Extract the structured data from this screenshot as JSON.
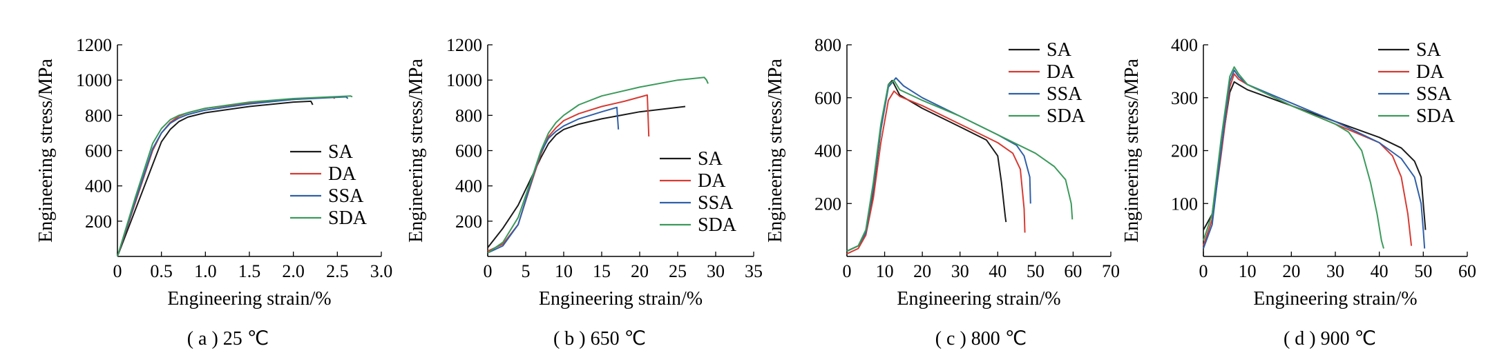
{
  "chart_data": [
    {
      "type": "line",
      "caption": "( a ) 25 ℃",
      "xlabel": "Engineering strain/%",
      "ylabel": "Engineering stress/MPa",
      "xlim": [
        0,
        3.0
      ],
      "ylim": [
        0,
        1200
      ],
      "xticks": [
        "0",
        "0.5",
        "1.0",
        "1.5",
        "2.0",
        "2.5",
        "3.0"
      ],
      "yticks": [
        "200",
        "400",
        "600",
        "800",
        "1000",
        "1200"
      ],
      "legend_position": "lower-right",
      "series": [
        {
          "name": "SA",
          "color": "#1a1a1a",
          "x": [
            0,
            0.2,
            0.4,
            0.5,
            0.6,
            0.7,
            0.8,
            1.0,
            1.5,
            2.0,
            2.2,
            2.22
          ],
          "y": [
            0,
            260,
            520,
            650,
            720,
            765,
            790,
            815,
            850,
            875,
            880,
            860
          ]
        },
        {
          "name": "DA",
          "color": "#d63a32",
          "x": [
            0,
            0.2,
            0.4,
            0.5,
            0.6,
            0.7,
            0.8,
            1.0,
            1.5,
            2.0,
            2.45,
            2.47
          ],
          "y": [
            0,
            300,
            600,
            700,
            760,
            795,
            815,
            840,
            870,
            890,
            905,
            895
          ]
        },
        {
          "name": "SSA",
          "color": "#2f5fa8",
          "x": [
            0,
            0.2,
            0.4,
            0.5,
            0.6,
            0.7,
            0.8,
            1.0,
            1.5,
            2.0,
            2.6,
            2.62
          ],
          "y": [
            0,
            310,
            610,
            700,
            755,
            785,
            805,
            830,
            865,
            890,
            905,
            895
          ]
        },
        {
          "name": "SDA",
          "color": "#3a9a5a",
          "x": [
            0,
            0.2,
            0.4,
            0.5,
            0.6,
            0.7,
            0.8,
            1.0,
            1.5,
            2.0,
            2.65,
            2.67
          ],
          "y": [
            0,
            330,
            640,
            725,
            775,
            800,
            815,
            840,
            875,
            895,
            910,
            905
          ]
        }
      ]
    },
    {
      "type": "line",
      "caption": "( b ) 650 ℃",
      "xlabel": "Engineering strain/%",
      "ylabel": "Engineering stress/MPa",
      "xlim": [
        0,
        35
      ],
      "ylim": [
        0,
        1200
      ],
      "xticks": [
        "0",
        "5",
        "10",
        "15",
        "20",
        "25",
        "30",
        "35"
      ],
      "yticks": [
        "200",
        "400",
        "600",
        "800",
        "1000",
        "1200"
      ],
      "legend_position": "lower-right",
      "series": [
        {
          "name": "SA",
          "color": "#1a1a1a",
          "x": [
            0,
            2,
            4,
            6,
            7,
            8,
            9,
            10,
            12,
            15,
            20,
            26
          ],
          "y": [
            50,
            160,
            290,
            470,
            560,
            640,
            690,
            720,
            750,
            780,
            820,
            850
          ]
        },
        {
          "name": "DA",
          "color": "#d63a32",
          "x": [
            0,
            2,
            4,
            6,
            7,
            8,
            9,
            10,
            12,
            15,
            18,
            21,
            21.1,
            21.2
          ],
          "y": [
            30,
            70,
            180,
            450,
            580,
            680,
            730,
            770,
            810,
            850,
            880,
            915,
            800,
            680
          ]
        },
        {
          "name": "SSA",
          "color": "#2f5fa8",
          "x": [
            0,
            2,
            4,
            6,
            7,
            8,
            9,
            10,
            12,
            15,
            17,
            17.1,
            17.2
          ],
          "y": [
            20,
            60,
            180,
            460,
            590,
            670,
            710,
            740,
            780,
            820,
            845,
            780,
            720
          ]
        },
        {
          "name": "SDA",
          "color": "#3a9a5a",
          "x": [
            0,
            2,
            4,
            6,
            7,
            8,
            9,
            10,
            12,
            15,
            20,
            25,
            28.5,
            28.8,
            29
          ],
          "y": [
            20,
            80,
            220,
            470,
            600,
            700,
            760,
            800,
            860,
            910,
            960,
            1000,
            1015,
            1000,
            980
          ]
        }
      ]
    },
    {
      "type": "line",
      "caption": "( c ) 800 ℃",
      "xlabel": "Engineering strain/%",
      "ylabel": "Engineering stress/MPa",
      "xlim": [
        0,
        70
      ],
      "ylim": [
        0,
        800
      ],
      "xticks": [
        "0",
        "10",
        "20",
        "30",
        "40",
        "50",
        "60",
        "70"
      ],
      "yticks": [
        "200",
        "400",
        "600",
        "800"
      ],
      "legend_position": "upper-right",
      "series": [
        {
          "name": "SA",
          "color": "#1a1a1a",
          "x": [
            0,
            3,
            5,
            7,
            9,
            11,
            12,
            14,
            20,
            30,
            37,
            40,
            41,
            42,
            42.2
          ],
          "y": [
            20,
            40,
            90,
            250,
            480,
            650,
            665,
            610,
            560,
            490,
            440,
            380,
            280,
            150,
            130
          ]
        },
        {
          "name": "DA",
          "color": "#d63a32",
          "x": [
            0,
            3,
            5,
            7,
            9,
            11,
            12.5,
            14,
            20,
            30,
            40,
            44,
            46,
            47,
            47.2
          ],
          "y": [
            10,
            30,
            80,
            220,
            430,
            590,
            625,
            605,
            570,
            500,
            430,
            390,
            330,
            180,
            90
          ]
        },
        {
          "name": "SSA",
          "color": "#2f5fa8",
          "x": [
            0,
            3,
            5,
            7,
            9,
            11,
            13,
            15,
            20,
            30,
            40,
            45,
            47,
            48.5,
            48.7
          ],
          "y": [
            20,
            40,
            90,
            260,
            480,
            640,
            675,
            645,
            600,
            530,
            460,
            420,
            380,
            300,
            200
          ]
        },
        {
          "name": "SDA",
          "color": "#3a9a5a",
          "x": [
            0,
            3,
            5,
            7,
            9,
            11,
            12.5,
            14,
            20,
            30,
            40,
            50,
            55,
            58,
            59.5,
            59.8
          ],
          "y": [
            20,
            40,
            100,
            280,
            500,
            650,
            665,
            630,
            590,
            530,
            460,
            390,
            340,
            290,
            200,
            140
          ]
        }
      ]
    },
    {
      "type": "line",
      "caption": "( d ) 900 ℃",
      "xlabel": "Engineering strain/%",
      "ylabel": "Engineering stress/MPa",
      "xlim": [
        0,
        60
      ],
      "ylim": [
        0,
        400
      ],
      "xticks": [
        "0",
        "10",
        "20",
        "30",
        "40",
        "50",
        "60"
      ],
      "yticks": [
        "100",
        "200",
        "300",
        "400"
      ],
      "legend_position": "upper-right",
      "series": [
        {
          "name": "SA",
          "color": "#1a1a1a",
          "x": [
            0,
            2,
            4,
            6,
            7,
            8,
            10,
            20,
            30,
            40,
            45,
            48,
            49.5,
            50,
            50.5
          ],
          "y": [
            50,
            80,
            200,
            310,
            330,
            325,
            315,
            285,
            255,
            225,
            205,
            180,
            150,
            100,
            50
          ]
        },
        {
          "name": "DA",
          "color": "#d63a32",
          "x": [
            0,
            2,
            4,
            6,
            7,
            8,
            10,
            20,
            30,
            40,
            43,
            45,
            46.5,
            47.3
          ],
          "y": [
            20,
            70,
            190,
            320,
            345,
            335,
            325,
            285,
            250,
            215,
            190,
            150,
            80,
            20
          ]
        },
        {
          "name": "SSA",
          "color": "#2f5fa8",
          "x": [
            0,
            2,
            4,
            6,
            7,
            8,
            10,
            20,
            30,
            40,
            45,
            48,
            49.5,
            50,
            50.3
          ],
          "y": [
            15,
            60,
            200,
            330,
            352,
            340,
            325,
            290,
            255,
            215,
            185,
            150,
            100,
            50,
            15
          ]
        },
        {
          "name": "SDA",
          "color": "#3a9a5a",
          "x": [
            0,
            2,
            4,
            6,
            7,
            8,
            10,
            20,
            30,
            33,
            36,
            38,
            39.5,
            40.5,
            41
          ],
          "y": [
            30,
            80,
            220,
            340,
            358,
            345,
            325,
            285,
            250,
            235,
            200,
            140,
            80,
            30,
            15
          ]
        }
      ]
    }
  ]
}
